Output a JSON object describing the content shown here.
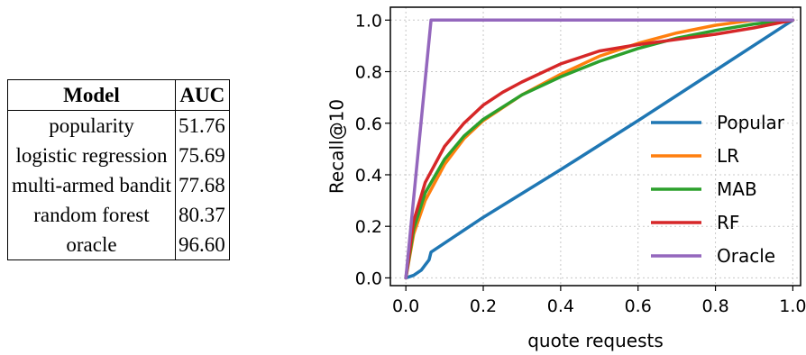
{
  "table": {
    "headers": [
      "Model",
      "AUC"
    ],
    "rows": [
      {
        "model": "popularity",
        "auc": "51.76"
      },
      {
        "model": "logistic regression",
        "auc": "75.69"
      },
      {
        "model": "multi-armed bandit",
        "auc": "77.68"
      },
      {
        "model": "random forest",
        "auc": "80.37"
      },
      {
        "model": "oracle",
        "auc": "96.60"
      }
    ]
  },
  "chart_data": {
    "type": "line",
    "title": "",
    "xlabel": "quote requests",
    "ylabel": "Recall@10",
    "xlim": [
      -0.04,
      1.02
    ],
    "ylim": [
      -0.03,
      1.05
    ],
    "xticks": [
      "0.0",
      "0.2",
      "0.4",
      "0.6",
      "0.8",
      "1.0"
    ],
    "yticks": [
      "0.0",
      "0.2",
      "0.4",
      "0.6",
      "0.8",
      "1.0"
    ],
    "grid": true,
    "legend_position": "lower right",
    "series": [
      {
        "name": "Popular",
        "color": "#1f77b4",
        "x": [
          0.0,
          0.02,
          0.04,
          0.05,
          0.06,
          0.065,
          0.2,
          0.4,
          0.6,
          0.8,
          1.0
        ],
        "y": [
          0.0,
          0.01,
          0.03,
          0.05,
          0.07,
          0.1,
          0.235,
          0.42,
          0.61,
          0.805,
          1.0
        ]
      },
      {
        "name": "LR",
        "color": "#ff7f0e",
        "x": [
          0.0,
          0.02,
          0.05,
          0.1,
          0.15,
          0.2,
          0.3,
          0.4,
          0.5,
          0.6,
          0.7,
          0.8,
          0.9,
          1.0
        ],
        "y": [
          0.0,
          0.17,
          0.3,
          0.44,
          0.54,
          0.61,
          0.71,
          0.79,
          0.86,
          0.91,
          0.95,
          0.98,
          1.0,
          1.0
        ]
      },
      {
        "name": "MAB",
        "color": "#2ca02c",
        "x": [
          0.0,
          0.02,
          0.05,
          0.1,
          0.15,
          0.2,
          0.3,
          0.4,
          0.5,
          0.6,
          0.7,
          0.8,
          0.9,
          1.0
        ],
        "y": [
          0.0,
          0.19,
          0.33,
          0.46,
          0.55,
          0.615,
          0.71,
          0.78,
          0.84,
          0.89,
          0.93,
          0.96,
          0.985,
          1.0
        ]
      },
      {
        "name": "RF",
        "color": "#d62728",
        "x": [
          0.0,
          0.02,
          0.05,
          0.1,
          0.15,
          0.2,
          0.25,
          0.3,
          0.4,
          0.5,
          0.6,
          0.7,
          0.8,
          0.9,
          1.0
        ],
        "y": [
          0.0,
          0.22,
          0.37,
          0.51,
          0.6,
          0.67,
          0.72,
          0.76,
          0.83,
          0.88,
          0.905,
          0.925,
          0.945,
          0.97,
          1.0
        ]
      },
      {
        "name": "Oracle",
        "color": "#9467bd",
        "x": [
          0.0,
          0.065,
          1.0
        ],
        "y": [
          0.0,
          1.0,
          1.0
        ]
      }
    ]
  }
}
